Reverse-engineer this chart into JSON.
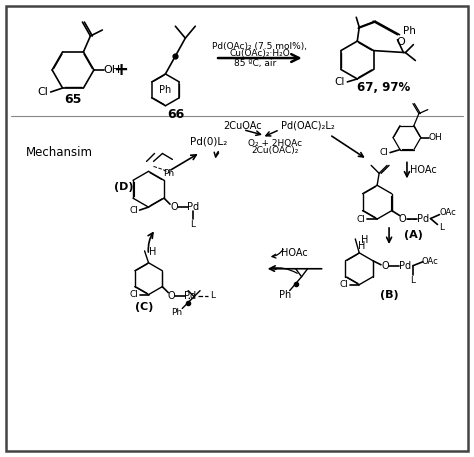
{
  "bg_color": "#ffffff",
  "border_color": "#444444",
  "text_color": "#000000",
  "mechanism_label": "Mechansim",
  "compound65": "65",
  "compound66": "66",
  "compound67": "67, 97%",
  "cond1": "Pd(OAc)₂ (7.5 mol%),",
  "cond2": "Cu(OAc)₂·H₂O",
  "cond3": "85 ºC, air",
  "label_A": "(A)",
  "label_B": "(B)",
  "label_C": "(C)",
  "label_D": "(D)",
  "cuoac": "2CuOAc",
  "pd_oac_l2": "Pd(OAC)₂L₂",
  "o2_hoac": "O₂ + 2HOAc",
  "cu_oac2": "2Cu(OAC)₂",
  "pd0l2": "Pd(0)L₂",
  "hoac1": "HOAc",
  "hoac2": "HOAc"
}
